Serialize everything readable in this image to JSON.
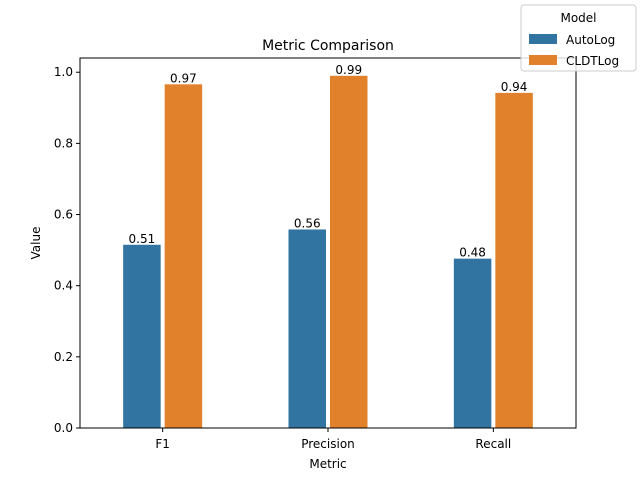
{
  "chart_data": {
    "type": "bar",
    "title": "Metric Comparison",
    "xlabel": "Metric",
    "ylabel": "Value",
    "categories": [
      "F1",
      "Precision",
      "Recall"
    ],
    "series": [
      {
        "name": "AutoLog",
        "values": [
          0.515,
          0.558,
          0.476
        ],
        "labels": [
          "0.51",
          "0.56",
          "0.48"
        ],
        "color": "#3274a1"
      },
      {
        "name": "CLDTLog",
        "values": [
          0.966,
          0.99,
          0.942
        ],
        "labels": [
          "0.97",
          "0.99",
          "0.94"
        ],
        "color": "#e1812c"
      }
    ],
    "ylim": [
      0,
      1.04
    ],
    "yticks": [
      0.0,
      0.2,
      0.4,
      0.6,
      0.8,
      1.0
    ],
    "ytick_labels": [
      "0.0",
      "0.2",
      "0.4",
      "0.6",
      "0.8",
      "1.0"
    ],
    "grid": false,
    "legend": {
      "title": "Model",
      "placement": "top-right"
    }
  }
}
